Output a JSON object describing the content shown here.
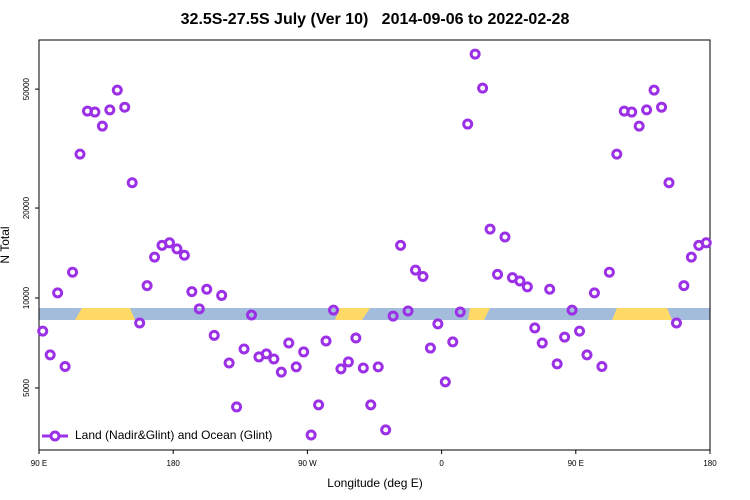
{
  "chart_data": {
    "type": "scatter",
    "title": "32.5S-27.5S July (Ver 10)   2014-09-06 to 2022-02-28",
    "x_label": "Longitude (deg E)",
    "y_label": "N Total",
    "ylog": true,
    "legend_position": "bottom-left",
    "xlim": [
      90,
      540
    ],
    "xticks": [
      {
        "value": 90,
        "label": "90 E"
      },
      180,
      {
        "value": 270,
        "label": "90 W"
      },
      {
        "value": 360,
        "label": "0"
      },
      {
        "value": 450,
        "label": "90 E"
      },
      {
        "value": 540,
        "label": "180"
      }
    ],
    "ylim": [
      3100,
      73000
    ],
    "yticks": [
      5000,
      10000,
      20000,
      50000
    ],
    "series": [
      {
        "name": "Land (Nadir&Glint) and Ocean (Glint)",
        "color": "#9b30e6",
        "x": [
          92.5,
          97.5,
          102.5,
          107.5,
          112.5,
          117.5,
          122.5,
          127.5,
          132.5,
          137.5,
          142.5,
          147.5,
          152.5,
          157.5,
          162.5,
          167.5,
          172.5,
          177.5,
          182.5,
          187.5,
          192.5,
          197.5,
          202.5,
          207.5,
          212.5,
          217.5,
          222.5,
          227.5,
          232.5,
          237.5,
          242.5,
          247.5,
          252.5,
          257.5,
          262.5,
          267.5,
          272.5,
          277.5,
          282.5,
          287.5,
          292.5,
          297.5,
          302.5,
          307.5,
          312.5,
          317.5,
          322.5,
          327.5,
          332.5,
          337.5,
          342.5,
          347.5,
          352.5,
          357.5,
          362.5,
          367.5,
          372.5,
          377.5,
          382.5,
          387.5,
          392.5,
          397.5,
          402.5,
          407.5,
          412.5,
          417.5,
          422.5,
          427.5,
          432.5,
          437.5,
          442.5,
          447.5,
          452.5,
          457.5,
          462.5,
          467.5,
          472.5,
          477.5,
          482.5,
          487.5,
          492.5,
          497.5,
          502.5,
          507.5,
          512.5,
          517.5,
          522.5,
          527.5,
          532.5,
          537.5
        ],
        "values": [
          7750,
          6450,
          10400,
          5900,
          12200,
          30300,
          42200,
          41900,
          37600,
          42600,
          49600,
          43500,
          24300,
          8250,
          11000,
          13700,
          15000,
          15300,
          14600,
          13900,
          10500,
          9200,
          10700,
          7500,
          10200,
          6060,
          4320,
          6750,
          8770,
          6350,
          6500,
          6250,
          5650,
          7070,
          5880,
          6600,
          3480,
          4390,
          7180,
          9110,
          5790,
          6110,
          7350,
          5830,
          4390,
          5880,
          3620,
          8700,
          15000,
          9050,
          12400,
          11800,
          6800,
          8190,
          5240,
          7130,
          8980,
          38200,
          65500,
          50400,
          17000,
          12000,
          16000,
          11700,
          11400,
          10900,
          7940,
          7070,
          10700,
          6020,
          7400,
          9110,
          7750,
          6450,
          10400,
          5900,
          12200,
          30300,
          42200,
          41900,
          37600,
          42600,
          49600,
          43500,
          24300,
          8250,
          11000,
          13700,
          15000,
          15300
        ]
      }
    ]
  }
}
